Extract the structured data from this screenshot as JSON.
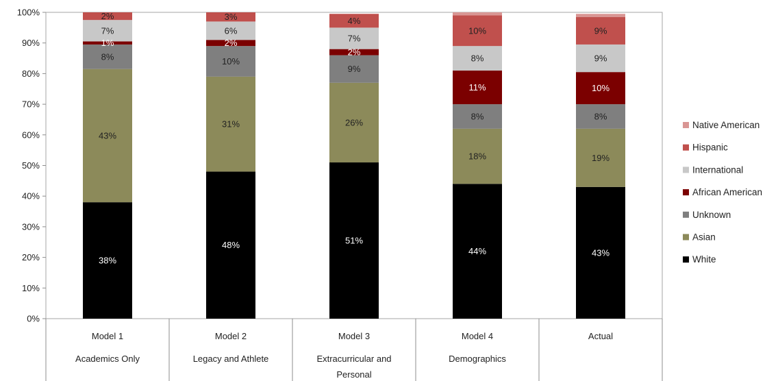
{
  "chart_data": {
    "type": "bar",
    "stacked": true,
    "percent_stacked": true,
    "categories": [
      [
        "Model 1",
        "Academics Only"
      ],
      [
        "Model 2",
        "Legacy and Athlete"
      ],
      [
        "Model 3",
        "Extracurricular and",
        "Personal"
      ],
      [
        "Model 4",
        "Demographics"
      ],
      [
        "Actual"
      ]
    ],
    "ylim": [
      0,
      100
    ],
    "yticks": [
      "0%",
      "10%",
      "20%",
      "30%",
      "40%",
      "50%",
      "60%",
      "70%",
      "80%",
      "90%",
      "100%"
    ],
    "grid": false,
    "legend_position": "right",
    "series": [
      {
        "name": "White",
        "color": "#000000",
        "values": [
          38,
          48,
          51,
          44,
          43
        ],
        "labels": [
          "38%",
          "48%",
          "51%",
          "44%",
          "43%"
        ],
        "label_color": "#ffffff"
      },
      {
        "name": "Asian",
        "color": "#8c8a5a",
        "values": [
          43.5,
          31,
          26,
          18,
          19
        ],
        "labels": [
          "43%",
          "31%",
          "26%",
          "18%",
          "19%"
        ],
        "label_color": "#222222"
      },
      {
        "name": "Unknown",
        "color": "#7f7f7f",
        "values": [
          8,
          10,
          9,
          8,
          8
        ],
        "labels": [
          "8%",
          "10%",
          "9%",
          "8%",
          "8%"
        ],
        "label_color": "#222222"
      },
      {
        "name": "African American",
        "color": "#7b0000",
        "values": [
          1,
          2,
          2,
          11,
          10.5
        ],
        "labels": [
          "1%",
          "2%",
          "2%",
          "11%",
          "10%"
        ],
        "label_color": "#ffffff"
      },
      {
        "name": "International",
        "color": "#c8c8c8",
        "values": [
          7,
          6,
          7,
          8,
          9
        ],
        "labels": [
          "7%",
          "6%",
          "7%",
          "8%",
          "9%"
        ],
        "label_color": "#222222"
      },
      {
        "name": "Hispanic",
        "color": "#c0504d",
        "values": [
          2.5,
          3,
          4.5,
          10,
          9
        ],
        "labels": [
          "2%",
          "3%",
          "4%",
          "10%",
          "9%"
        ],
        "label_color": "#222222"
      },
      {
        "name": "Native American",
        "color": "#d99694",
        "values": [
          0,
          0,
          0,
          1,
          1
        ],
        "labels": [
          "",
          "",
          "",
          "",
          ""
        ],
        "label_color": "#222222"
      }
    ],
    "legend_order": [
      "Native American",
      "Hispanic",
      "International",
      "African American",
      "Unknown",
      "Asian",
      "White"
    ]
  }
}
